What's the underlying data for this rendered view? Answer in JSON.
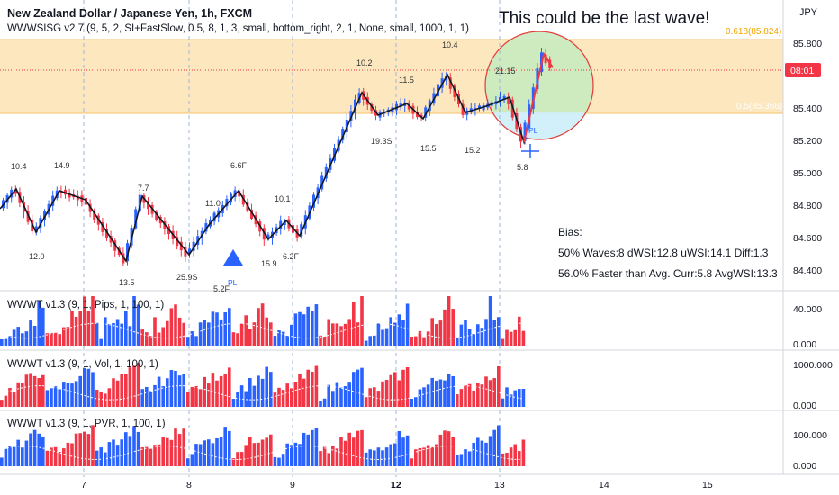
{
  "header": {
    "symbol_title": "New Zealand Dollar / Japanese Yen, 1h, FXCM",
    "indicator_title": "WWWSISG v2.7 (9, 5, 2, SI+FastSlow, 0.5, 8, 1, 3, small, bottom_right, 2, 1, None, small, 1000, 1, 1)",
    "currency": "JPY"
  },
  "annotation": "This could be the last wave!",
  "price_axis": {
    "ticks": [
      "85.800",
      "85.400",
      "85.200",
      "85.000",
      "84.800",
      "84.600",
      "84.400"
    ],
    "fib_upper": "0.618(85.824)",
    "fib_lower": "0.5(85.366)",
    "countdown": "08:01"
  },
  "wave_labels": [
    "10.4",
    "12.0",
    "14.9",
    "13.5",
    "7.7",
    "25.9S",
    "11.0",
    "6.6F",
    "5.2F",
    "15.9",
    "10.1",
    "6.2F",
    "10.2",
    "19.3S",
    "11.5",
    "15.5",
    "10.4",
    "15.2",
    "21.15",
    "5.8"
  ],
  "pivot_labels": [
    "PL",
    "PL"
  ],
  "bias": {
    "title": "Bias:",
    "line1": "50% Waves:8 dWSI:12.8 uWSI:14.1 Diff:1.3",
    "line2": "56.0% Faster than Avg. Curr:5.8 AvgWSI:13.3"
  },
  "panes": [
    {
      "title": "WWWT v1.3 (9, 1, Pips, 1, 100, 1)",
      "ticks": [
        "40.000",
        "0.000"
      ]
    },
    {
      "title": "WWWT v1.3 (9, 1, Vol, 1, 100, 1)",
      "ticks": [
        "1000.000",
        "0.000"
      ]
    },
    {
      "title": "WWWT v1.3 (9, 1, PVR, 1, 100, 1)",
      "ticks": [
        "100.000",
        "0.000"
      ]
    }
  ],
  "time_axis": [
    "7",
    "8",
    "9",
    "12",
    "13",
    "14",
    "15"
  ],
  "colors": {
    "up": "#2962ff",
    "down": "#f23645",
    "fib_zone": "#fbe3b4",
    "circle_stroke": "#e53935",
    "circle_fill_top": "#c9ebc0",
    "circle_fill_bottom": "#cfeffa",
    "price_tag": "#f23645",
    "fib_text": "#f0a500"
  }
}
